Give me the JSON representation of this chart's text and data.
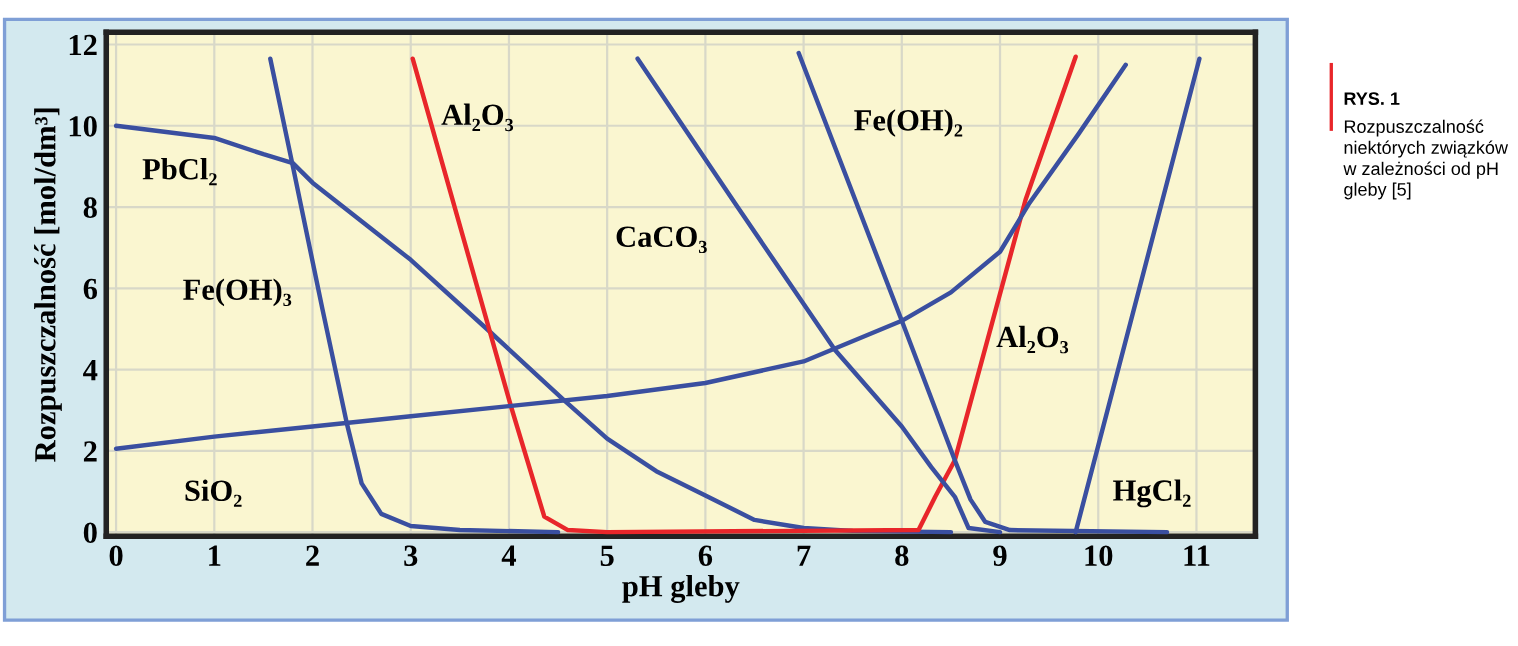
{
  "chart_data": {
    "type": "line",
    "xlabel": "pH gleby",
    "ylabel": "Rozpuszczalność [mol/dm³]",
    "xlim": [
      -0.1,
      11.6
    ],
    "ylim": [
      -0.1,
      12.3
    ],
    "xticks": [
      0,
      1,
      2,
      3,
      4,
      5,
      6,
      7,
      8,
      9,
      10,
      11
    ],
    "yticks": [
      0,
      2,
      4,
      6,
      8,
      10,
      12
    ],
    "grid": true,
    "legend": false,
    "marker": "none",
    "line_style": "solid",
    "series": [
      {
        "name": "PbCl₂",
        "color": "#3a4fa0",
        "x": [
          0,
          1,
          1.5,
          1.8,
          2,
          3,
          3.82,
          4.56,
          5,
          5.5,
          6,
          6.5,
          7,
          7.5,
          8.5
        ],
        "values": [
          10,
          9.7,
          9.3,
          9.08,
          8.6,
          6.7,
          4.9,
          3.25,
          2.3,
          1.5,
          0.9,
          0.3,
          0.1,
          0.03,
          0
        ]
      },
      {
        "name": "Fe(OH)₃",
        "color": "#3a4fa0",
        "x": [
          1.57,
          1.8,
          2.1,
          2.35,
          2.5,
          2.7,
          3,
          3.5,
          4.5
        ],
        "values": [
          11.65,
          9.0,
          5.5,
          2.67,
          1.2,
          0.45,
          0.15,
          0.05,
          0
        ]
      },
      {
        "name": "Al₂O₃",
        "color": "#e8262a",
        "x": [
          3.02,
          4.02,
          4.36,
          4.6,
          5,
          8.17,
          8.34,
          8.54,
          9.26,
          9.77
        ],
        "values": [
          11.65,
          3.1,
          0.38,
          0.05,
          0,
          0.05,
          0.87,
          1.77,
          8.18,
          11.7
        ]
      },
      {
        "name": "SiO₂",
        "color": "#3a4fa0",
        "x": [
          0,
          1,
          2,
          3,
          4,
          5,
          6,
          7,
          8,
          8.5,
          9,
          9.3,
          9.8,
          10.28
        ],
        "values": [
          2.05,
          2.35,
          2.6,
          2.85,
          3.1,
          3.35,
          3.67,
          4.2,
          5.2,
          5.9,
          6.9,
          8.1,
          9.8,
          11.5
        ]
      },
      {
        "name": "CaCO₃",
        "color": "#3a4fa0",
        "x": [
          5.31,
          6.3,
          7.32,
          8.0,
          8.3,
          8.54,
          8.68,
          9
        ],
        "values": [
          11.65,
          8.1,
          4.48,
          2.6,
          1.6,
          0.87,
          0.1,
          0
        ]
      },
      {
        "name": "Fe(OH)₂",
        "color": "#3a4fa0",
        "x": [
          6.95,
          8.0,
          8.54,
          8.7,
          8.85,
          9.1,
          10.7
        ],
        "values": [
          11.79,
          5.2,
          1.77,
          0.8,
          0.25,
          0.05,
          0
        ]
      },
      {
        "name": "HgCl₂",
        "color": "#3a4fa0",
        "x": [
          9.77,
          11.03
        ],
        "values": [
          0,
          11.65
        ]
      }
    ],
    "annotations": [
      "RYS. 1",
      "Rozpuszczalność\nniektórych związków\nw zależności od pH\ngleby [5]"
    ]
  }
}
